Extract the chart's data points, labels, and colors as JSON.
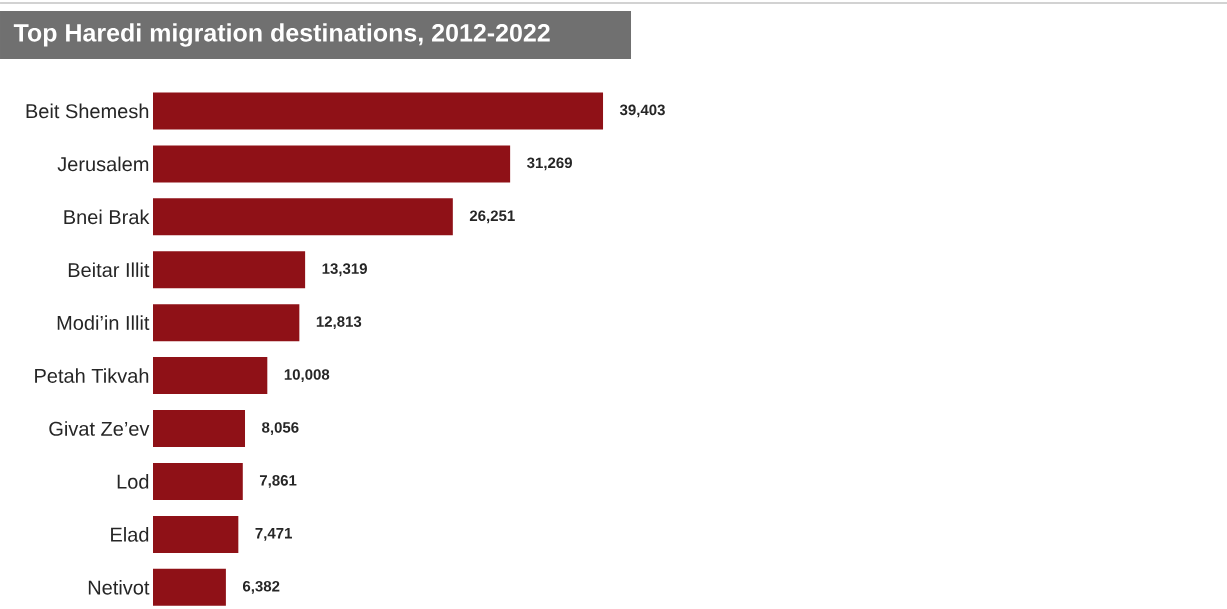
{
  "chart_data": {
    "type": "bar",
    "orientation": "horizontal",
    "title": "Top Haredi migration destinations, 2012-2022",
    "categories": [
      "Beit Shemesh",
      "Jerusalem",
      "Bnei Brak",
      "Beitar Illit",
      "Modi’in Illit",
      "Petah Tikvah",
      "Givat Ze’ev",
      "Lod",
      "Elad",
      "Netivot"
    ],
    "values": [
      39403,
      31269,
      26251,
      13319,
      12813,
      10008,
      8056,
      7861,
      7471,
      6382
    ],
    "value_labels": [
      "39,403",
      "31,269",
      "26,251",
      "13,319",
      "12,813",
      "10,008",
      "8,056",
      "7,861",
      "7,471",
      "6,382"
    ],
    "color": "#8f1117"
  }
}
